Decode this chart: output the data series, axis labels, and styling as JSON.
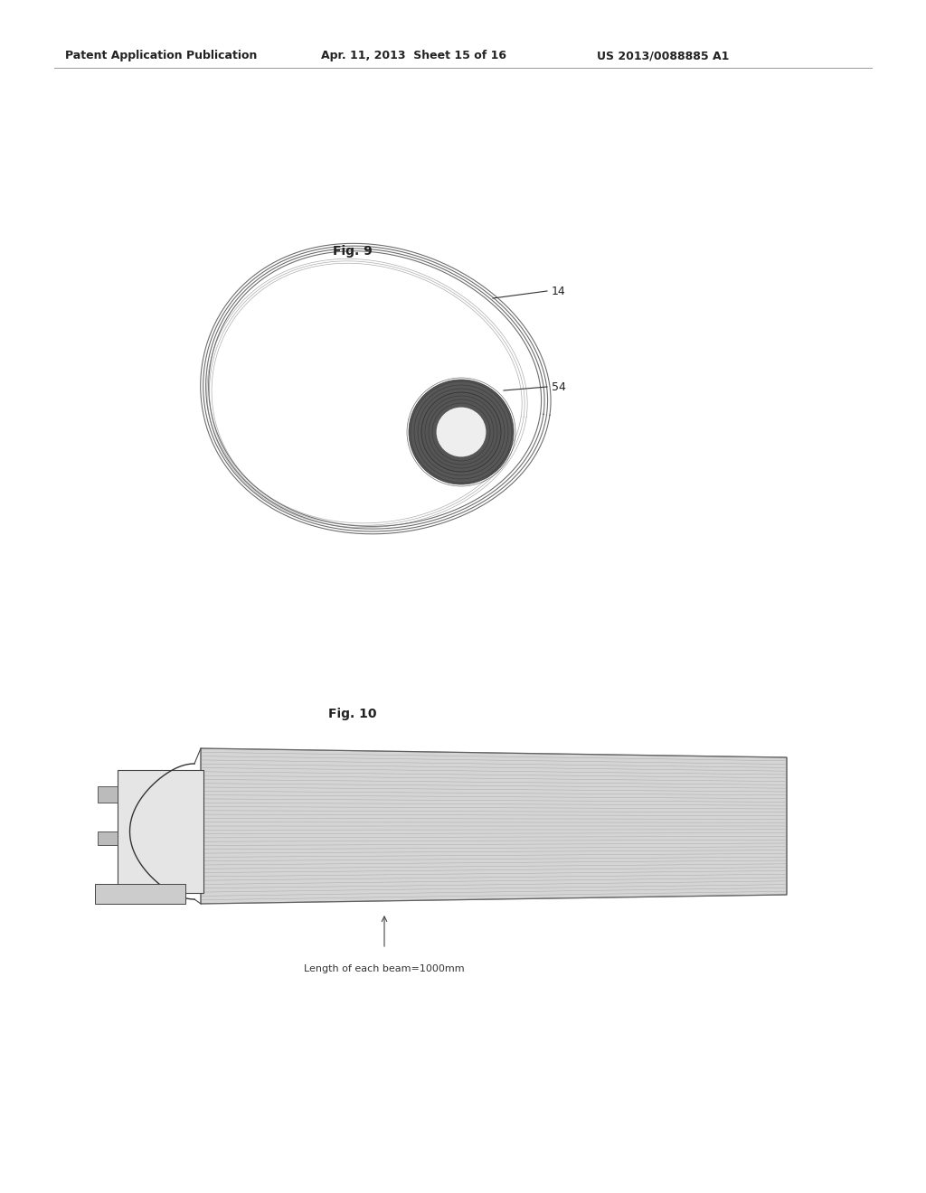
{
  "background_color": "#ffffff",
  "header_left": "Patent Application Publication",
  "header_mid": "Apr. 11, 2013  Sheet 15 of 16",
  "header_right": "US 2013/0088885 A1",
  "fig9_label": "Fig. 9",
  "fig10_label": "Fig. 10",
  "label_14": "14",
  "label_54": "54",
  "beam_label": "Length of each beam=1000mm",
  "line_color": "#666666",
  "dark_color": "#333333"
}
